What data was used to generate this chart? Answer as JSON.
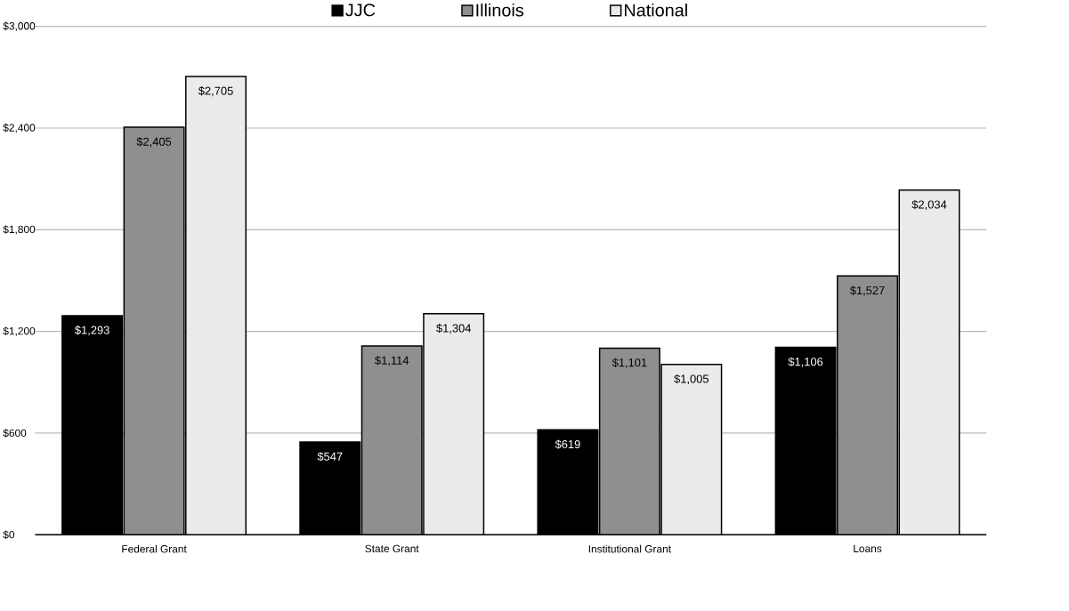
{
  "chart_data": {
    "type": "bar",
    "categories": [
      "Federal Grant",
      "State Grant",
      "Institutional Grant",
      "Loans"
    ],
    "series": [
      {
        "name": "JJC",
        "color": "#000000",
        "values": [
          1293,
          547,
          619,
          1106
        ],
        "value_labels": [
          "$1,293",
          "$547",
          "$619",
          "$1,106"
        ]
      },
      {
        "name": "Illinois",
        "color": "#8f8f8f",
        "values": [
          2405,
          1114,
          1101,
          1527
        ],
        "value_labels": [
          "$2,405",
          "$1,114",
          "$1,101",
          "$1,527"
        ]
      },
      {
        "name": "National",
        "color": "#ebebeb",
        "values": [
          2705,
          1304,
          1005,
          2034
        ],
        "value_labels": [
          "$2,705",
          "$1,304",
          "$1,005",
          "$2,034"
        ]
      }
    ],
    "ylim": [
      0,
      3000
    ],
    "yticks": [
      {
        "value": 0,
        "label": "$0"
      },
      {
        "value": 600,
        "label": "$600"
      },
      {
        "value": 1200,
        "label": "$1,200"
      },
      {
        "value": 1800,
        "label": "$1,800"
      },
      {
        "value": 2400,
        "label": "$2,400"
      },
      {
        "value": 3000,
        "label": "$3,000"
      }
    ],
    "grid": "y",
    "legend": "top"
  }
}
